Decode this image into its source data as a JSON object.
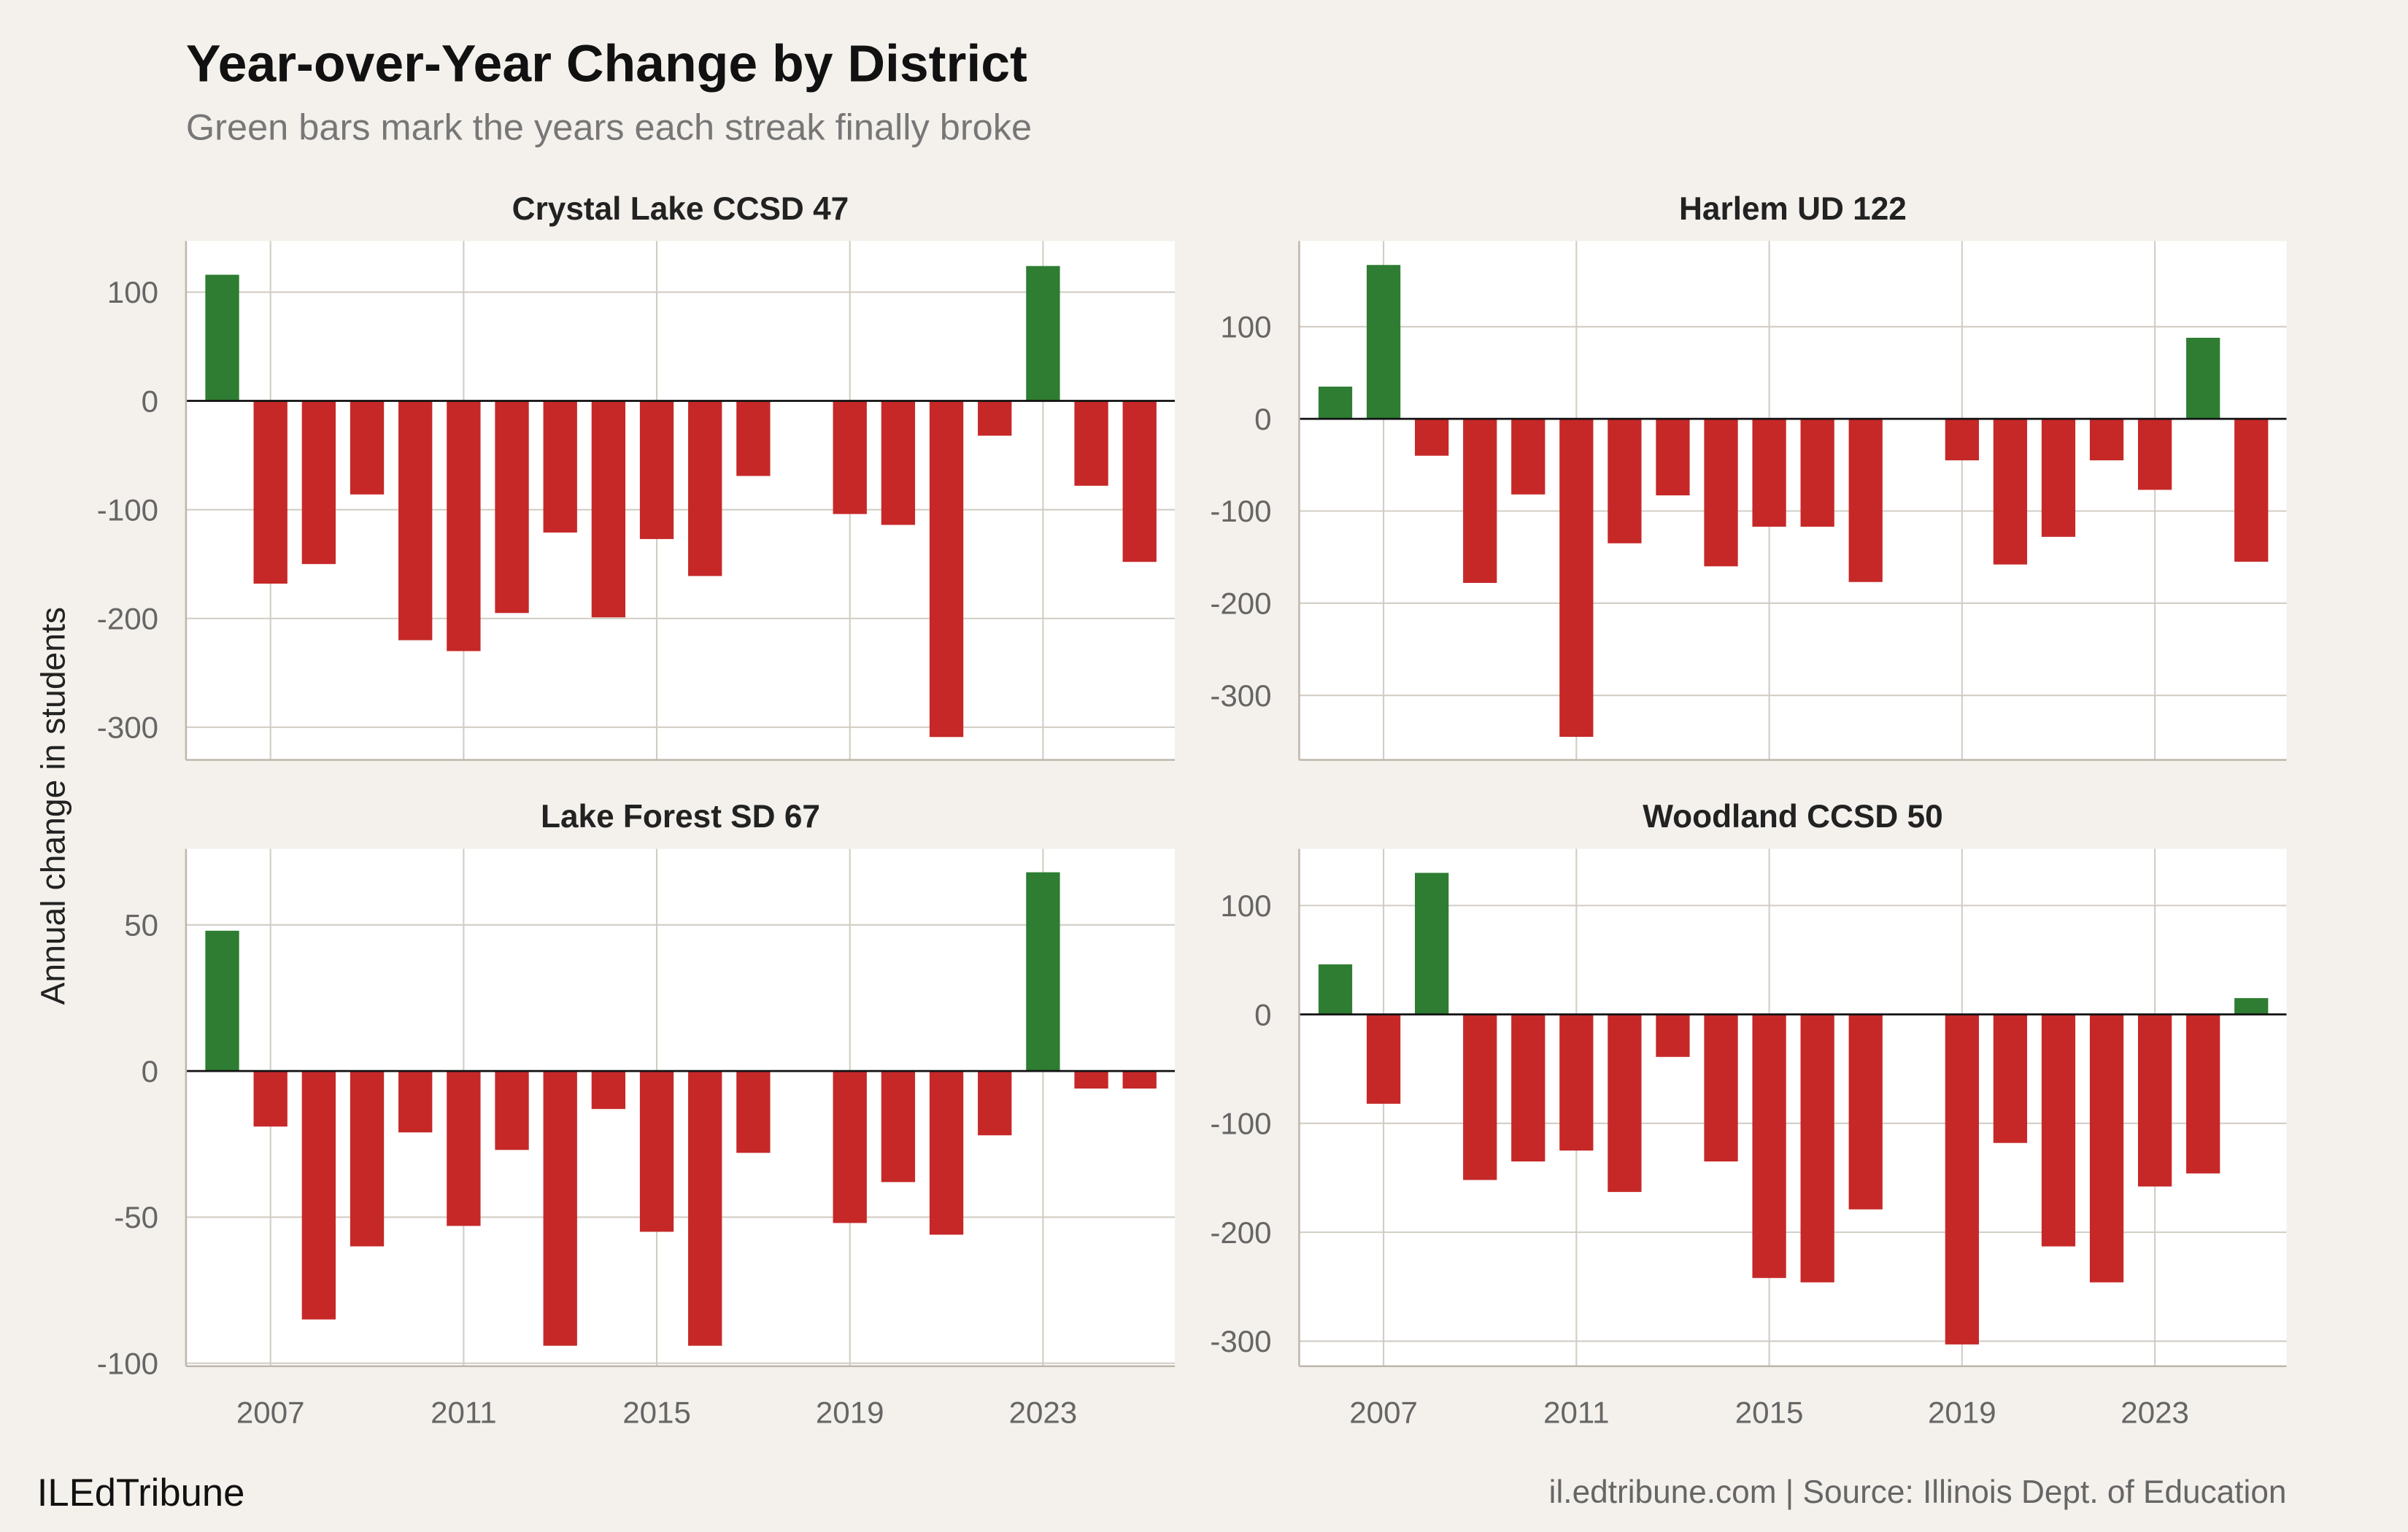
{
  "title": "Year-over-Year Change by District",
  "subtitle": "Green bars mark the years each streak finally broke",
  "ylabel": "Annual change in students",
  "footer_left": "ILEdTribune",
  "footer_right": "il.edtribune.com | Source: Illinois Dept. of Education",
  "colors": {
    "increase": "#2e7d32",
    "decrease": "#c62828",
    "background": "#f4f1ec",
    "panel": "#ffffff",
    "grid": "#d2cdc4"
  },
  "chart_data": [
    {
      "type": "bar",
      "title": "Crystal Lake CCSD 47",
      "x": [
        2006,
        2007,
        2008,
        2009,
        2010,
        2011,
        2012,
        2013,
        2014,
        2015,
        2016,
        2017,
        2019,
        2020,
        2021,
        2022,
        2023,
        2024,
        2025
      ],
      "values": [
        116,
        -168,
        -150,
        -86,
        -220,
        -230,
        -195,
        -121,
        -199,
        -127,
        -161,
        -69,
        -104,
        -114,
        -309,
        -32,
        124,
        -78,
        -148
      ],
      "xticks": [
        "2007",
        "2011",
        "2015",
        "2019",
        "2023"
      ],
      "yticks": [
        100,
        0,
        -100,
        -200,
        -300
      ],
      "ylim": [
        -330,
        147
      ],
      "grid": true
    },
    {
      "type": "bar",
      "title": "Harlem UD 122",
      "x": [
        2006,
        2007,
        2008,
        2009,
        2010,
        2011,
        2012,
        2013,
        2014,
        2015,
        2016,
        2017,
        2019,
        2020,
        2021,
        2022,
        2023,
        2024,
        2025
      ],
      "values": [
        35,
        167,
        -40,
        -178,
        -82,
        -345,
        -135,
        -83,
        -160,
        -117,
        -117,
        -177,
        -45,
        -158,
        -128,
        -45,
        -77,
        88,
        -155
      ],
      "xticks": [
        "2007",
        "2011",
        "2015",
        "2019",
        "2023"
      ],
      "yticks": [
        100,
        0,
        -100,
        -200,
        -300
      ],
      "ylim": [
        -370,
        193
      ],
      "grid": true
    },
    {
      "type": "bar",
      "title": "Lake Forest SD 67",
      "x": [
        2006,
        2007,
        2008,
        2009,
        2010,
        2011,
        2012,
        2013,
        2014,
        2015,
        2016,
        2017,
        2019,
        2020,
        2021,
        2022,
        2023,
        2024,
        2025
      ],
      "values": [
        48,
        -19,
        -85,
        -60,
        -21,
        -53,
        -27,
        -94,
        -13,
        -55,
        -94,
        -28,
        -52,
        -38,
        -56,
        -22,
        68,
        -6,
        -6
      ],
      "xticks": [
        "2007",
        "2011",
        "2015",
        "2019",
        "2023"
      ],
      "yticks": [
        50,
        0,
        -50,
        -100
      ],
      "ylim": [
        -101,
        76
      ],
      "grid": true
    },
    {
      "type": "bar",
      "title": "Woodland CCSD 50",
      "x": [
        2006,
        2007,
        2008,
        2009,
        2010,
        2011,
        2012,
        2013,
        2014,
        2015,
        2016,
        2017,
        2019,
        2020,
        2021,
        2022,
        2023,
        2024,
        2025
      ],
      "values": [
        46,
        -82,
        130,
        -152,
        -135,
        -125,
        -163,
        -39,
        -135,
        -242,
        -246,
        -179,
        -303,
        -118,
        -213,
        -246,
        -158,
        -146,
        15
      ],
      "xticks": [
        "2007",
        "2011",
        "2015",
        "2019",
        "2023"
      ],
      "yticks": [
        100,
        0,
        -100,
        -200,
        -300
      ],
      "ylim": [
        -323,
        152
      ],
      "grid": true
    }
  ]
}
